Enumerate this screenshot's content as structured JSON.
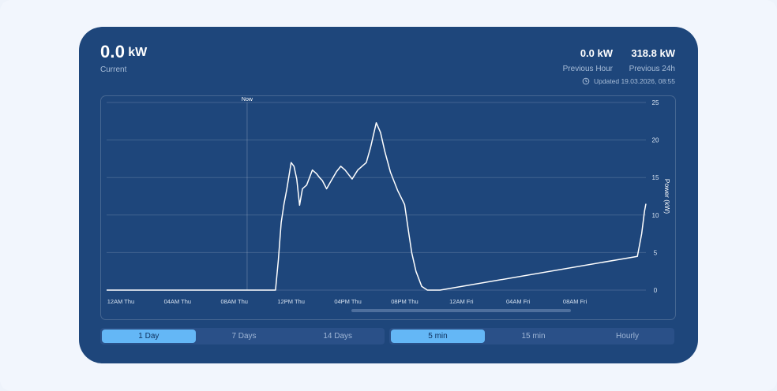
{
  "current": {
    "value": "0.0",
    "unit": "kW",
    "caption": "Current"
  },
  "stats": [
    {
      "value": "0.0 kW",
      "caption": "Previous Hour"
    },
    {
      "value": "318.8 kW",
      "caption": "Previous 24h"
    }
  ],
  "updated": "Updated 19.03.2026, 08:55",
  "colors": {
    "card": "#1e467b",
    "accent": "#64b7f6",
    "line": "#ffffff"
  },
  "icons": {
    "updated": "refresh-clock-icon"
  },
  "range_options": [
    {
      "label": "1 Day",
      "active": true
    },
    {
      "label": "7 Days",
      "active": false
    },
    {
      "label": "14 Days",
      "active": false
    }
  ],
  "interval_options": [
    {
      "label": "5 min",
      "active": true
    },
    {
      "label": "15 min",
      "active": false
    },
    {
      "label": "Hourly",
      "active": false
    }
  ],
  "chart_data": {
    "type": "line",
    "ylabel": "Power (kW)",
    "ylim": [
      0,
      25
    ],
    "yticks": [
      0,
      5,
      10,
      15,
      20,
      25
    ],
    "y_axis_side": "right",
    "grid": true,
    "xticks": [
      "12AM Thu",
      "04AM Thu",
      "08AM Thu",
      "12PM Thu",
      "04PM Thu",
      "08PM Thu",
      "12AM Fri",
      "04AM Fri",
      "08AM Fri"
    ],
    "xlim_hours": [
      -1,
      37
    ],
    "now_marker": {
      "label": "Now",
      "hour": 8.9
    },
    "series": [
      {
        "x": [
          -1,
          10.9,
          11.1,
          11.3,
          11.5,
          11.7,
          12.0,
          12.2,
          12.4,
          12.6,
          12.8,
          13.1,
          13.5,
          13.8,
          14.0,
          14.2,
          14.5,
          14.8,
          15.2,
          15.5,
          15.8,
          16.3,
          16.7,
          17.0,
          17.3,
          17.6,
          18.0,
          18.3,
          18.6,
          19.0,
          19.5,
          20.0,
          20.3,
          20.5,
          20.8,
          21.2,
          21.6,
          22.0,
          22.5,
          36.4,
          36.7,
          36.9,
          37.0
        ],
        "y": [
          0,
          0,
          4,
          9,
          11.5,
          13.5,
          17,
          16.5,
          14.8,
          11.3,
          13.5,
          14,
          16,
          15.5,
          15,
          14.6,
          13.5,
          14.5,
          15.8,
          16.5,
          16,
          14.8,
          16,
          16.5,
          17,
          19,
          22.3,
          21,
          18.5,
          15.7,
          13.3,
          11.4,
          7.5,
          5,
          2.5,
          0.5,
          0,
          0,
          0,
          4.5,
          7.5,
          10.5,
          11.5
        ]
      }
    ]
  }
}
